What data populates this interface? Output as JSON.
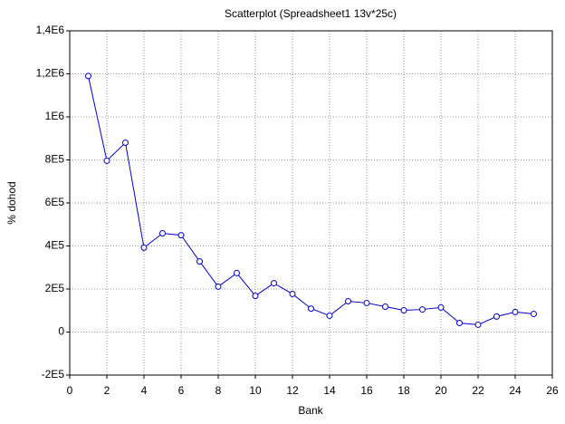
{
  "chart_data": {
    "type": "line",
    "title": "Scatterplot (Spreadsheet1 13v*25c)",
    "x_label": "Bank",
    "y_label": "% dohod",
    "x": [
      1,
      2,
      3,
      4,
      5,
      6,
      7,
      8,
      9,
      10,
      11,
      12,
      13,
      14,
      15,
      16,
      17,
      18,
      19,
      20,
      21,
      22,
      23,
      24,
      25
    ],
    "values": [
      1190000,
      796000,
      880000,
      392000,
      459000,
      450000,
      328000,
      211000,
      274000,
      168000,
      227000,
      177000,
      109000,
      76000,
      143000,
      135000,
      118000,
      101000,
      105000,
      114000,
      42000,
      34000,
      72000,
      93000,
      84000
    ],
    "color": "#0000cc",
    "xlim": [
      0,
      26
    ],
    "xticks": [
      0,
      2,
      4,
      6,
      8,
      10,
      12,
      14,
      16,
      18,
      20,
      22,
      24,
      26
    ],
    "ylim": [
      -200000,
      1400000
    ],
    "yticks": [
      {
        "value": -200000,
        "label": "-2E5"
      },
      0,
      {
        "value": 200000,
        "label": "2E5"
      },
      {
        "value": 400000,
        "label": "4E5"
      },
      {
        "value": 600000,
        "label": "6E5"
      },
      {
        "value": 800000,
        "label": "8E5"
      },
      {
        "value": 1000000,
        "label": "1E6"
      },
      {
        "value": 1200000,
        "label": "1,2E6"
      },
      {
        "value": 1400000,
        "label": "1,4E6"
      }
    ],
    "grid": true
  }
}
